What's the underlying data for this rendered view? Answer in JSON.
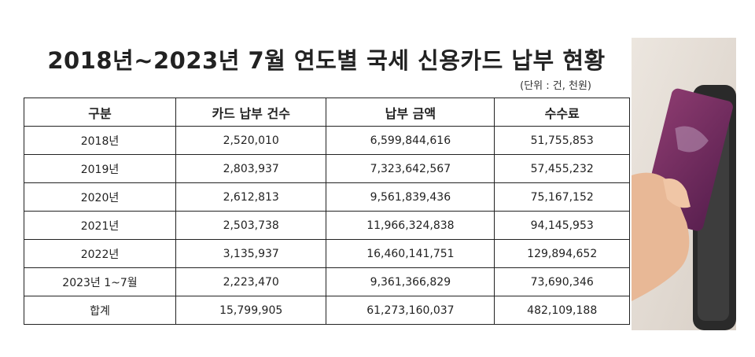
{
  "header": {
    "title": "2018년~2023년 7월 연도별 국세 신용카드 납부 현황",
    "unit": "(단위 : 건, 천원)"
  },
  "table": {
    "columns": [
      "구분",
      "카드 납부 건수",
      "납부 금액",
      "수수료"
    ],
    "rows": [
      [
        "2018년",
        "2,520,010",
        "6,599,844,616",
        "51,755,853"
      ],
      [
        "2019년",
        "2,803,937",
        "7,323,642,567",
        "57,455,232"
      ],
      [
        "2020년",
        "2,612,813",
        "9,561,839,436",
        "75,167,152"
      ],
      [
        "2021년",
        "2,503,738",
        "11,966,324,838",
        "94,145,953"
      ],
      [
        "2022년",
        "3,135,937",
        "16,460,141,751",
        "129,894,652"
      ],
      [
        "2023년 1~7월",
        "2,223,470",
        "9,361,366,829",
        "73,690,346"
      ],
      [
        "합계",
        "15,799,905",
        "61,273,160,037",
        "482,109,188"
      ]
    ]
  }
}
